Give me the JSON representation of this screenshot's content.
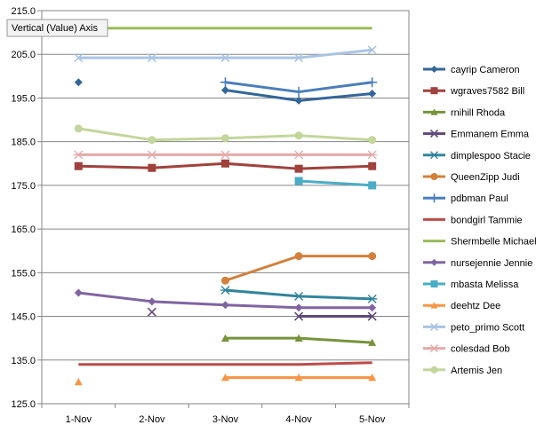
{
  "chart_data": {
    "type": "line",
    "title": "",
    "xlabel": "",
    "ylabel": "",
    "ylim": [
      125.0,
      215.0
    ],
    "yticks": [
      "125.0",
      "135.0",
      "145.0",
      "155.0",
      "165.0",
      "175.0",
      "185.0",
      "195.0",
      "205.0",
      "215.0"
    ],
    "categories": [
      "1-Nov",
      "2-Nov",
      "3-Nov",
      "4-Nov",
      "5-Nov"
    ],
    "grid": "horizontal",
    "legend_position": "right",
    "tooltip": "Vertical (Value) Axis",
    "series": [
      {
        "name": "cayrip Cameron",
        "color": "#336699",
        "marker": "diamond",
        "values": [
          198.6,
          null,
          196.8,
          194.4,
          196.0
        ]
      },
      {
        "name": "wgraves7582 Bill",
        "color": "#A0413C",
        "marker": "square",
        "values": [
          179.4,
          179.0,
          180.0,
          178.8,
          179.4
        ]
      },
      {
        "name": "rnihill Rhoda",
        "color": "#77933C",
        "marker": "triangle",
        "values": [
          null,
          null,
          140.0,
          140.0,
          139.0
        ]
      },
      {
        "name": "Emmanem  Emma",
        "color": "#5F497A",
        "marker": "x",
        "values": [
          null,
          null,
          null,
          145.0,
          145.0
        ]
      },
      {
        "name": "dimplespoo Stacie",
        "color": "#31859C",
        "marker": "star",
        "values": [
          null,
          null,
          151.0,
          149.6,
          149.0
        ]
      },
      {
        "name": "QueenZipp Judi",
        "color": "#D2803A",
        "marker": "circle",
        "values": [
          null,
          null,
          153.2,
          158.8,
          158.8
        ]
      },
      {
        "name": "pdbman Paul",
        "color": "#4A7EBB",
        "marker": "plus",
        "values": [
          null,
          null,
          198.6,
          196.4,
          198.6
        ]
      },
      {
        "name": "bondgirl Tammie",
        "color": "#BE4B48",
        "marker": "none",
        "values": [
          134.0,
          134.0,
          134.0,
          134.0,
          134.4
        ]
      },
      {
        "name": "Shermbelle Michael",
        "color": "#9BBB59",
        "marker": "none",
        "values": [
          211.0,
          211.0,
          211.0,
          211.0,
          211.0
        ]
      },
      {
        "name": "nursejennie Jennie",
        "color": "#8064A2",
        "marker": "diamond",
        "values": [
          150.4,
          148.4,
          147.6,
          147.0,
          147.0
        ]
      },
      {
        "name": "mbasta Melissa",
        "color": "#4BACC6",
        "marker": "square",
        "values": [
          null,
          null,
          null,
          176.0,
          175.0
        ]
      },
      {
        "name": "deehtz Dee",
        "color": "#F79646",
        "marker": "triangle",
        "values": [
          130.0,
          null,
          131.0,
          131.0,
          131.0
        ]
      },
      {
        "name": "peto_primo Scott",
        "color": "#A9C4E4",
        "marker": "x",
        "values": [
          204.2,
          204.2,
          204.2,
          204.2,
          206.0
        ]
      },
      {
        "name": "colesdad Bob",
        "color": "#E6A9A8",
        "marker": "star",
        "values": [
          182.0,
          182.0,
          182.0,
          182.0,
          182.0
        ]
      },
      {
        "name": "Artemis Jen",
        "color": "#C3D69B",
        "marker": "circle",
        "values": [
          188.0,
          185.4,
          185.8,
          186.4,
          185.4
        ]
      }
    ],
    "extra_points": [
      {
        "series": "Emmanem  Emma",
        "category": "2-Nov",
        "value": 146.0
      }
    ]
  }
}
